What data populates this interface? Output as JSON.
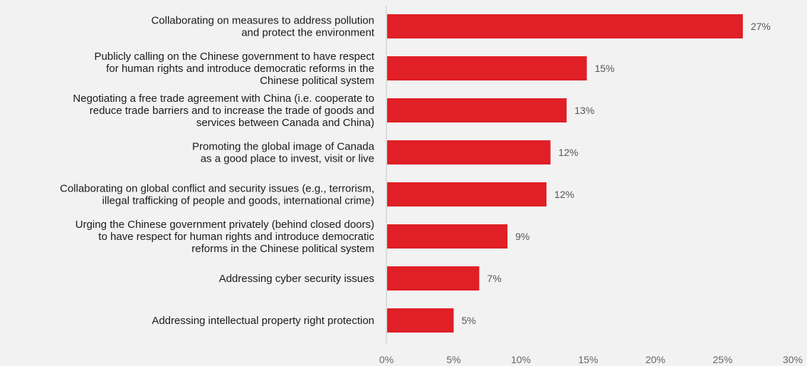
{
  "chart_data": {
    "type": "bar",
    "orientation": "horizontal",
    "categories": [
      [
        "Collaborating on measures to address pollution",
        "and protect the environment"
      ],
      [
        "Publicly calling on the Chinese government to have respect",
        "for human rights and introduce democratic reforms in the",
        "Chinese political system"
      ],
      [
        "Negotiating a free trade agreement with China (i.e. cooperate to",
        "reduce trade barriers and to increase the trade of goods and",
        "services between Canada and China)"
      ],
      [
        "Promoting the global image of Canada",
        "as a good place to invest, visit or live"
      ],
      [
        "Collaborating on global conflict and security issues (e.g., terrorism,",
        "illegal trafficking of people and goods, international crime)"
      ],
      [
        "Urging the Chinese government privately (behind closed doors)",
        "to have respect for human rights and introduce democratic",
        "reforms in the Chinese political system"
      ],
      [
        "Addressing cyber security issues"
      ],
      [
        "Addressing intellectual property right protection"
      ]
    ],
    "values": [
      26.5,
      14.9,
      13.4,
      12.2,
      11.9,
      9.0,
      6.9,
      5.0
    ],
    "value_labels": [
      "27%",
      "15%",
      "13%",
      "12%",
      "12%",
      "9%",
      "7%",
      "5%"
    ],
    "xlim": [
      0,
      30
    ],
    "xticks": [
      0,
      5,
      10,
      15,
      20,
      25,
      30
    ],
    "xtick_labels": [
      "0%",
      "5%",
      "10%",
      "15%",
      "20%",
      "25%",
      "30%"
    ],
    "title": "",
    "xlabel": "",
    "ylabel": "",
    "grid": false,
    "legend": "none",
    "colors": {
      "bar": "#e01f26",
      "axis": "#cfcfcf",
      "background": "#f2f2f2"
    }
  }
}
